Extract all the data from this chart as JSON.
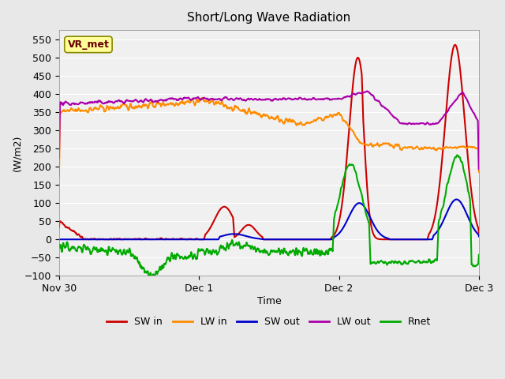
{
  "title": "Short/Long Wave Radiation",
  "xlabel": "Time",
  "ylabel": "(W/m2)",
  "ylim": [
    -100,
    575
  ],
  "yticks": [
    -100,
    -50,
    0,
    50,
    100,
    150,
    200,
    250,
    300,
    350,
    400,
    450,
    500,
    550
  ],
  "xlim": [
    0,
    864
  ],
  "xtick_positions": [
    0,
    288,
    576,
    864
  ],
  "xtick_labels": [
    "Nov 30",
    "Dec 1",
    "Dec 2",
    "Dec 3"
  ],
  "legend_labels": [
    "SW in",
    "LW in",
    "SW out",
    "LW out",
    "Rnet"
  ],
  "colors": {
    "SW_in": "#cc0000",
    "LW_in": "#ff8c00",
    "SW_out": "#0000cc",
    "LW_out": "#aa00aa",
    "Rnet": "#00aa00"
  },
  "line_widths": {
    "SW_in": 1.5,
    "LW_in": 1.5,
    "SW_out": 1.5,
    "LW_out": 1.5,
    "Rnet": 1.5
  },
  "annotation_text": "VR_met",
  "annotation_box_color": "#ffff99",
  "annotation_border_color": "#888800",
  "background_color": "#e8e8e8",
  "plot_bg_color": "#f0f0f0",
  "grid_color": "white",
  "n_points": 865
}
